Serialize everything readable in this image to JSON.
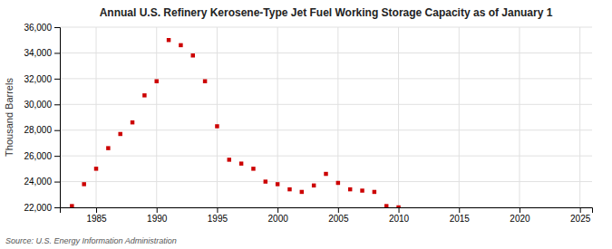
{
  "chart_data": {
    "type": "scatter",
    "title": "Annual U.S. Refinery Kerosene-Type Jet Fuel Working Storage Capacity as of January 1",
    "ylabel": "Thousand Barrels",
    "annotations": [
      "Source: U.S. Energy Information Administration"
    ],
    "color": "#cc0000",
    "marker": "square",
    "grid": true,
    "xlim": [
      1982,
      2026
    ],
    "ylim": [
      22000,
      36000
    ],
    "xticks": [
      1985,
      1990,
      1995,
      2000,
      2005,
      2010,
      2015,
      2020,
      2025
    ],
    "yticks": [
      {
        "value": 22000,
        "label": "22,000"
      },
      {
        "value": 24000,
        "label": "24,000"
      },
      {
        "value": 26000,
        "label": "26,000"
      },
      {
        "value": 28000,
        "label": "28,000"
      },
      {
        "value": 30000,
        "label": "30,000"
      },
      {
        "value": 32000,
        "label": "32,000"
      },
      {
        "value": 34000,
        "label": "34,000"
      },
      {
        "value": 36000,
        "label": "36,000"
      }
    ],
    "x": [
      1983,
      1984,
      1985,
      1986,
      1987,
      1988,
      1989,
      1990,
      1991,
      1992,
      1993,
      1994,
      1995,
      1996,
      1997,
      1998,
      1999,
      2000,
      2001,
      2002,
      2003,
      2004,
      2005,
      2006,
      2007,
      2008,
      2009,
      2010
    ],
    "values": [
      22100,
      23800,
      25000,
      26600,
      27700,
      28600,
      30700,
      31800,
      35000,
      34600,
      33800,
      31800,
      28300,
      25700,
      25400,
      25000,
      24000,
      23800,
      23400,
      23200,
      23700,
      24600,
      23900,
      23400,
      23300,
      23200,
      22100,
      22000
    ]
  }
}
